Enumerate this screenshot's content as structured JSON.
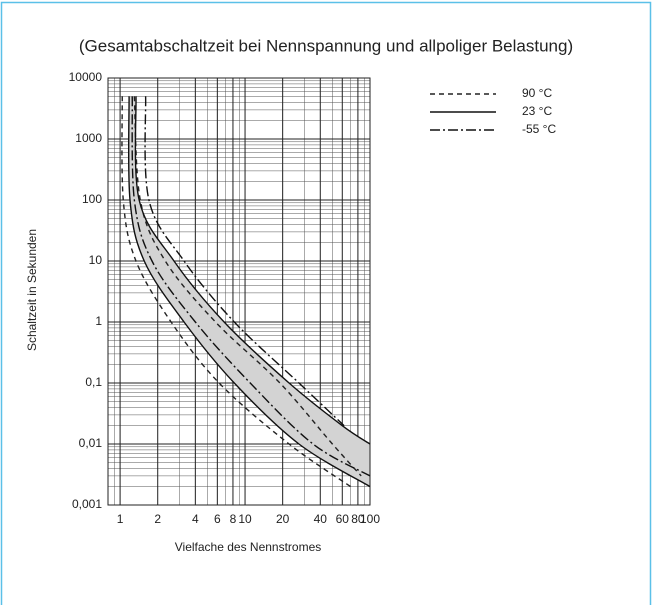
{
  "chart_data": {
    "type": "line",
    "title": "(Gesamtabschaltzeit bei Nennspannung und allpoliger Belastung)",
    "x_label": "Vielfache des Nennstromes",
    "y_label": "Schaltzeit in Sekunden",
    "log_x": true,
    "log_y": true,
    "grid": true,
    "minor_grid": true,
    "xlim": [
      0.8,
      100
    ],
    "ylim": [
      0.001,
      10000
    ],
    "xticks": [
      1,
      2,
      4,
      6,
      8,
      10,
      20,
      40,
      60,
      80,
      100
    ],
    "yticks": [
      10000,
      1000,
      100,
      10,
      1,
      {
        "value": 0.1,
        "label": "0,1"
      },
      {
        "value": 0.01,
        "label": "0,01"
      },
      {
        "value": 0.001,
        "label": "0,001"
      }
    ],
    "legend": "top-right",
    "band_color": "#d3d3d3",
    "band_series": 1,
    "series": [
      {
        "name": "90 °C",
        "color": "#222222",
        "dash": "5 4",
        "lower": {
          "x": [
            1.04,
            1.06,
            1.34,
            2.56,
            6.2,
            22.5,
            70
          ],
          "values": [
            5000,
            100,
            10,
            1,
            0.1,
            0.01,
            0.002
          ]
        },
        "upper": {
          "x": [
            1.3,
            1.45,
            2.3,
            5.8,
            19,
            50,
            85
          ],
          "values": [
            5000,
            100,
            10,
            1,
            0.1,
            0.01,
            0.003
          ]
        }
      },
      {
        "name": "23 °C",
        "color": "#111111",
        "dash": "",
        "lower": {
          "x": [
            1.18,
            1.2,
            1.56,
            3.25,
            8.2,
            27,
            100
          ],
          "values": [
            5000,
            100,
            10,
            1,
            0.1,
            0.01,
            0.002
          ]
        },
        "upper": {
          "x": [
            1.34,
            1.42,
            2.7,
            6.8,
            22.5,
            60,
            100
          ],
          "values": [
            5000,
            100,
            10,
            1,
            0.1,
            0.02,
            0.01
          ]
        }
      },
      {
        "name": "-55 °C",
        "color": "#111111",
        "dash": "10 3 2 3",
        "lower": {
          "x": [
            1.25,
            1.3,
            1.8,
            4,
            11,
            35,
            100
          ],
          "values": [
            5000,
            100,
            10,
            1,
            0.1,
            0.01,
            0.003
          ]
        },
        "upper": {
          "x": [
            1.6,
            1.7,
            3.25,
            8.2,
            27,
            62
          ],
          "values": [
            5000,
            100,
            10,
            1,
            0.1,
            0.02
          ]
        }
      }
    ]
  }
}
